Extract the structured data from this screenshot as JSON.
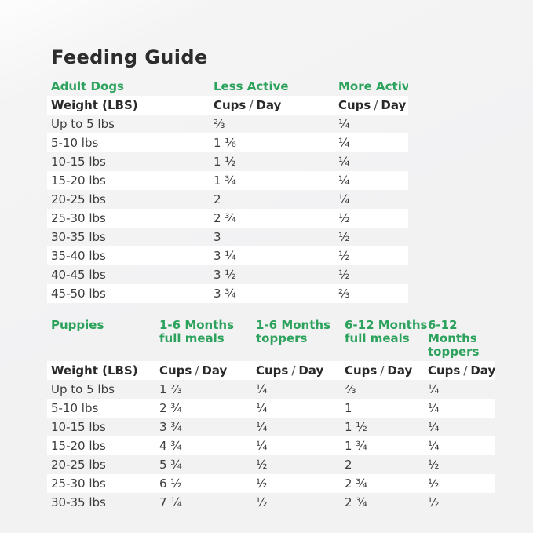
{
  "page": {
    "title": "Feeding Guide"
  },
  "labels": {
    "weight_header": "Weight (LBS)",
    "cups_day": {
      "cups": "Cups",
      "slash": "/",
      "day": "Day"
    }
  },
  "colors": {
    "accent_green": "#2ca25c",
    "title_text": "#2c2c2c",
    "body_text": "#3d3d3d",
    "row_stripe": "#ffffff",
    "page_background": "#f2f2f3"
  },
  "chart_data": [
    {
      "type": "table",
      "section_title": "Adult Dogs",
      "column_groups": [
        "Less Active",
        "More Active"
      ],
      "subheaders": [
        "Weight (LBS)",
        "Cups / Day",
        "Cups / Day"
      ],
      "rows": [
        [
          "Up to 5 lbs",
          "⅔",
          "¼"
        ],
        [
          "5-10 lbs",
          "1 ⅙",
          "¼"
        ],
        [
          "10-15 lbs",
          "1 ½",
          "¼"
        ],
        [
          "15-20 lbs",
          "1 ¾",
          "¼"
        ],
        [
          "20-25 lbs",
          "2",
          "¼"
        ],
        [
          "25-30 lbs",
          "2 ¾",
          "½"
        ],
        [
          "30-35 lbs",
          "3",
          "½"
        ],
        [
          "35-40 lbs",
          "3 ¼",
          "½"
        ],
        [
          "40-45 lbs",
          "3 ½",
          "½"
        ],
        [
          "45-50 lbs",
          "3 ¾",
          "⅔"
        ]
      ]
    },
    {
      "type": "table",
      "section_title": "Puppies",
      "column_groups": [
        [
          "1-6 Months",
          "full meals"
        ],
        [
          "1-6 Months",
          "toppers"
        ],
        [
          "6-12 Months",
          "full meals"
        ],
        [
          "6-12 Months",
          "toppers"
        ]
      ],
      "subheaders": [
        "Weight (LBS)",
        "Cups / Day",
        "Cups / Day",
        "Cups / Day",
        "Cups / Day"
      ],
      "rows": [
        [
          "Up to 5 lbs",
          "1 ⅔",
          "¼",
          "⅔",
          "¼"
        ],
        [
          "5-10 lbs",
          "2 ¾",
          "¼",
          "1",
          "¼"
        ],
        [
          "10-15 lbs",
          "3 ¾",
          "¼",
          "1 ½",
          "¼"
        ],
        [
          "15-20 lbs",
          "4 ¾",
          "¼",
          "1 ¾",
          "¼"
        ],
        [
          "20-25 lbs",
          "5 ¾",
          "½",
          "2",
          "½"
        ],
        [
          "25-30 lbs",
          "6 ½",
          "½",
          "2 ¾",
          "½"
        ],
        [
          "30-35 lbs",
          "7 ¼",
          "½",
          "2 ¾",
          "½"
        ]
      ]
    }
  ]
}
